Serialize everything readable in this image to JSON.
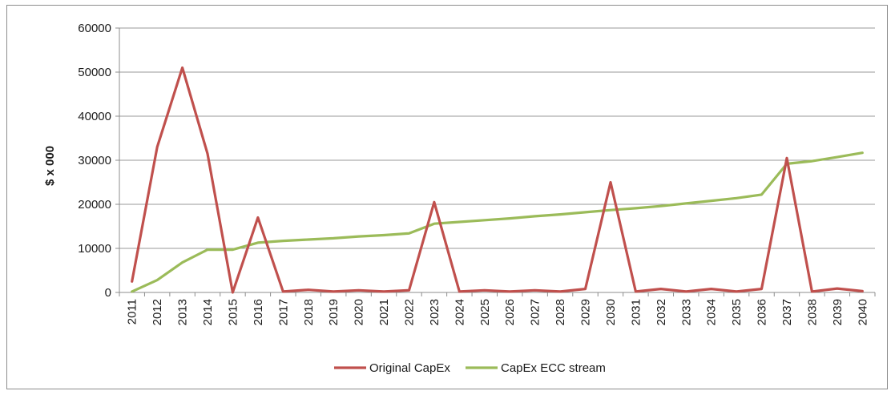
{
  "chart_data": {
    "type": "line",
    "title": "",
    "xlabel": "",
    "ylabel": "$ x 000",
    "ylim": [
      0,
      60000
    ],
    "yticks": [
      0,
      10000,
      20000,
      30000,
      40000,
      50000,
      60000
    ],
    "grid": "horizontal",
    "legend_position": "bottom",
    "x": [
      "2011",
      "2012",
      "2013",
      "2014",
      "2015",
      "2016",
      "2017",
      "2018",
      "2019",
      "2020",
      "2021",
      "2022",
      "2023",
      "2024",
      "2025",
      "2026",
      "2027",
      "2028",
      "2029",
      "2030",
      "2031",
      "2032",
      "2033",
      "2034",
      "2035",
      "2036",
      "2037",
      "2038",
      "2039",
      "2040"
    ],
    "series": [
      {
        "name": "Original CapEx",
        "color": "#c0504d",
        "values": [
          2500,
          33000,
          51000,
          31500,
          0,
          17000,
          200,
          600,
          200,
          500,
          200,
          500,
          20500,
          200,
          500,
          200,
          500,
          200,
          800,
          25000,
          200,
          800,
          200,
          800,
          200,
          800,
          30500,
          200,
          900,
          300
        ]
      },
      {
        "name": "CapEx ECC stream",
        "color": "#9bbb59",
        "values": [
          200,
          2800,
          6800,
          9700,
          9700,
          11300,
          11700,
          12000,
          12300,
          12700,
          13000,
          13400,
          15600,
          16000,
          16400,
          16800,
          17300,
          17700,
          18200,
          18700,
          19100,
          19600,
          20200,
          20800,
          21400,
          22200,
          29200,
          29800,
          30700,
          31700
        ]
      }
    ]
  }
}
